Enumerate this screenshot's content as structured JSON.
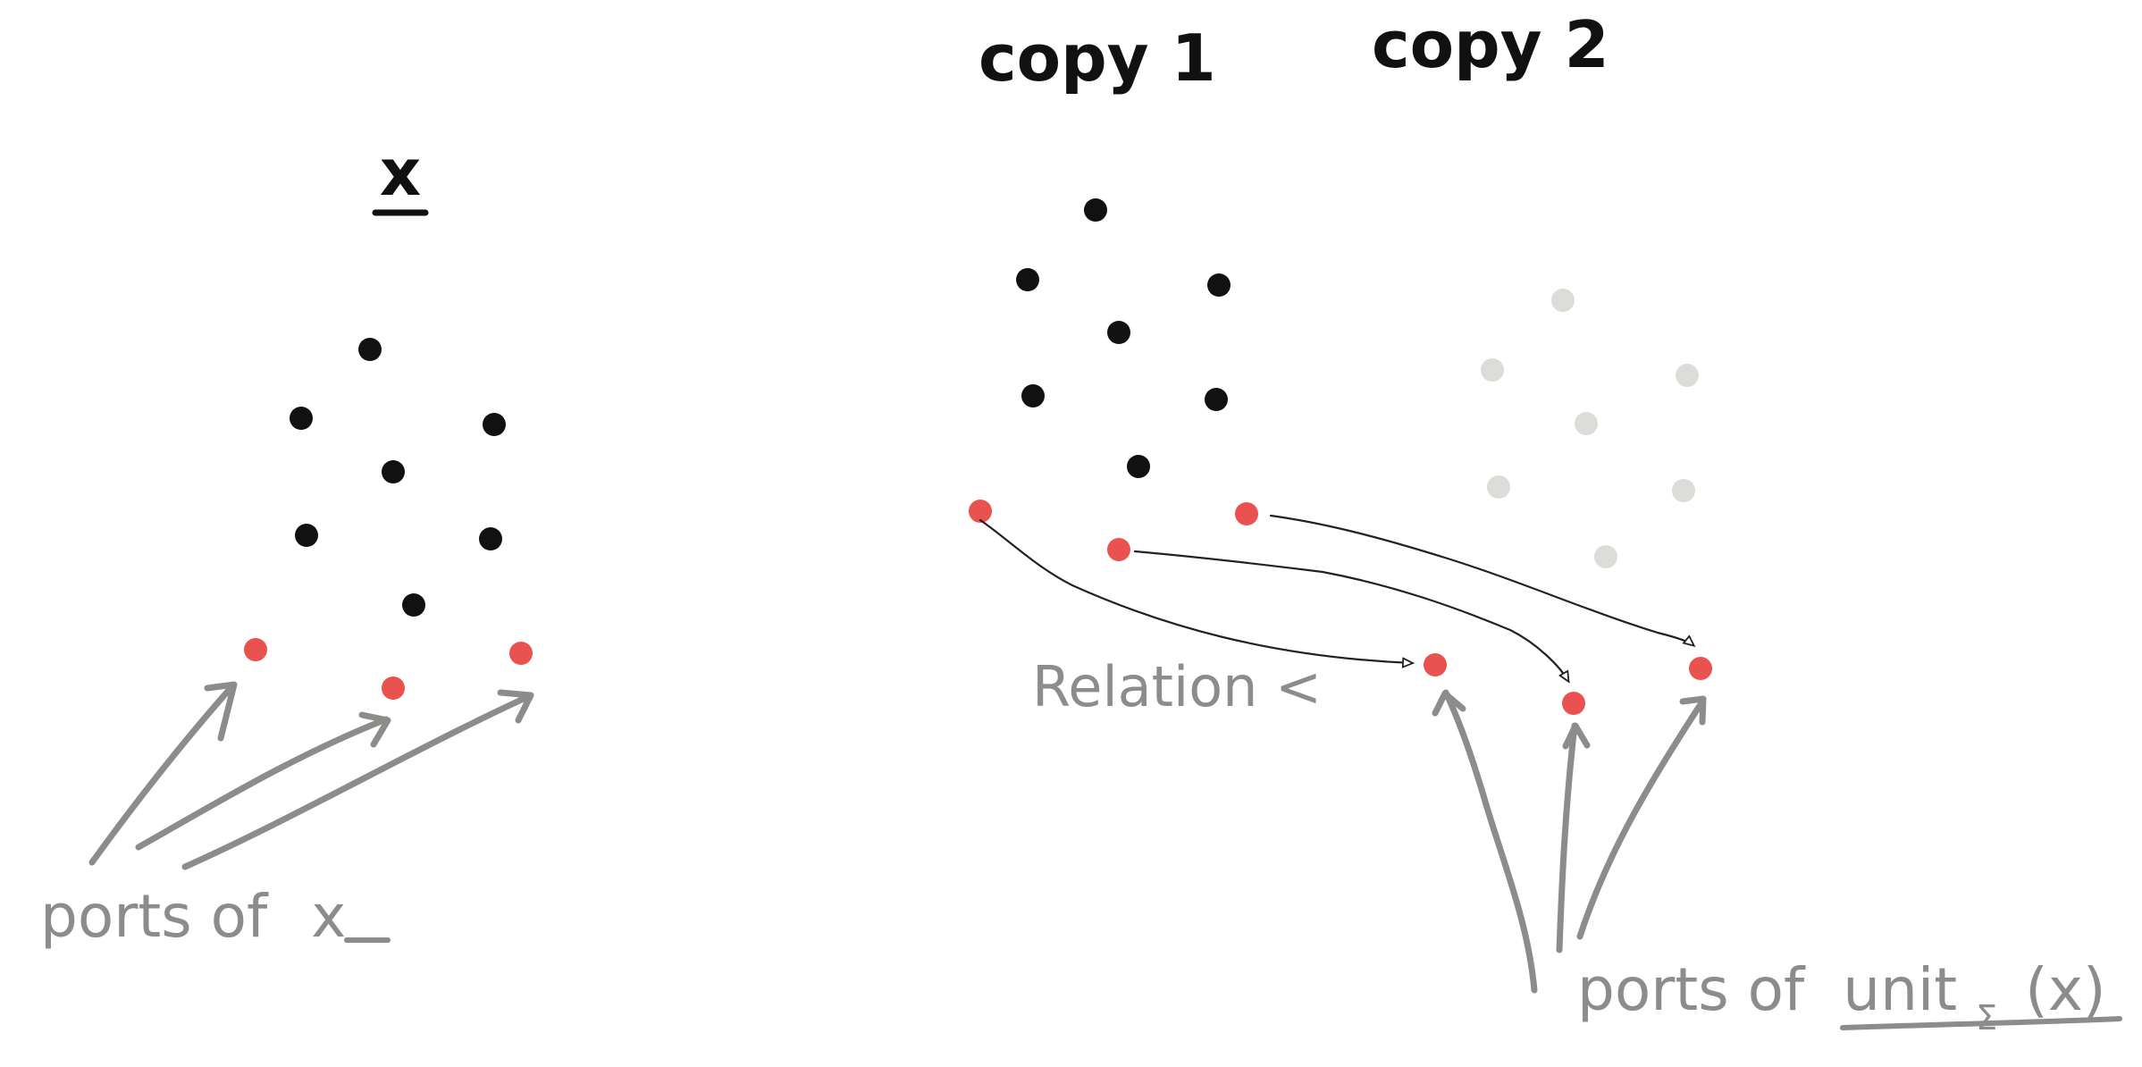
{
  "labels": {
    "x_title": "x",
    "copy1_title": "copy 1",
    "copy2_title": "copy 2",
    "relation_label": "Relation <",
    "ports_x_prefix": "ports of",
    "ports_x_var": "x",
    "ports_unit_prefix": "ports of",
    "ports_unit_func": "unit",
    "ports_unit_sub": "Σ",
    "ports_unit_arg": "(x)"
  },
  "colors": {
    "ink": "#111111",
    "port": "#e9524f",
    "annotation": "#8c8c8a",
    "faded": "#dcdcd8"
  }
}
